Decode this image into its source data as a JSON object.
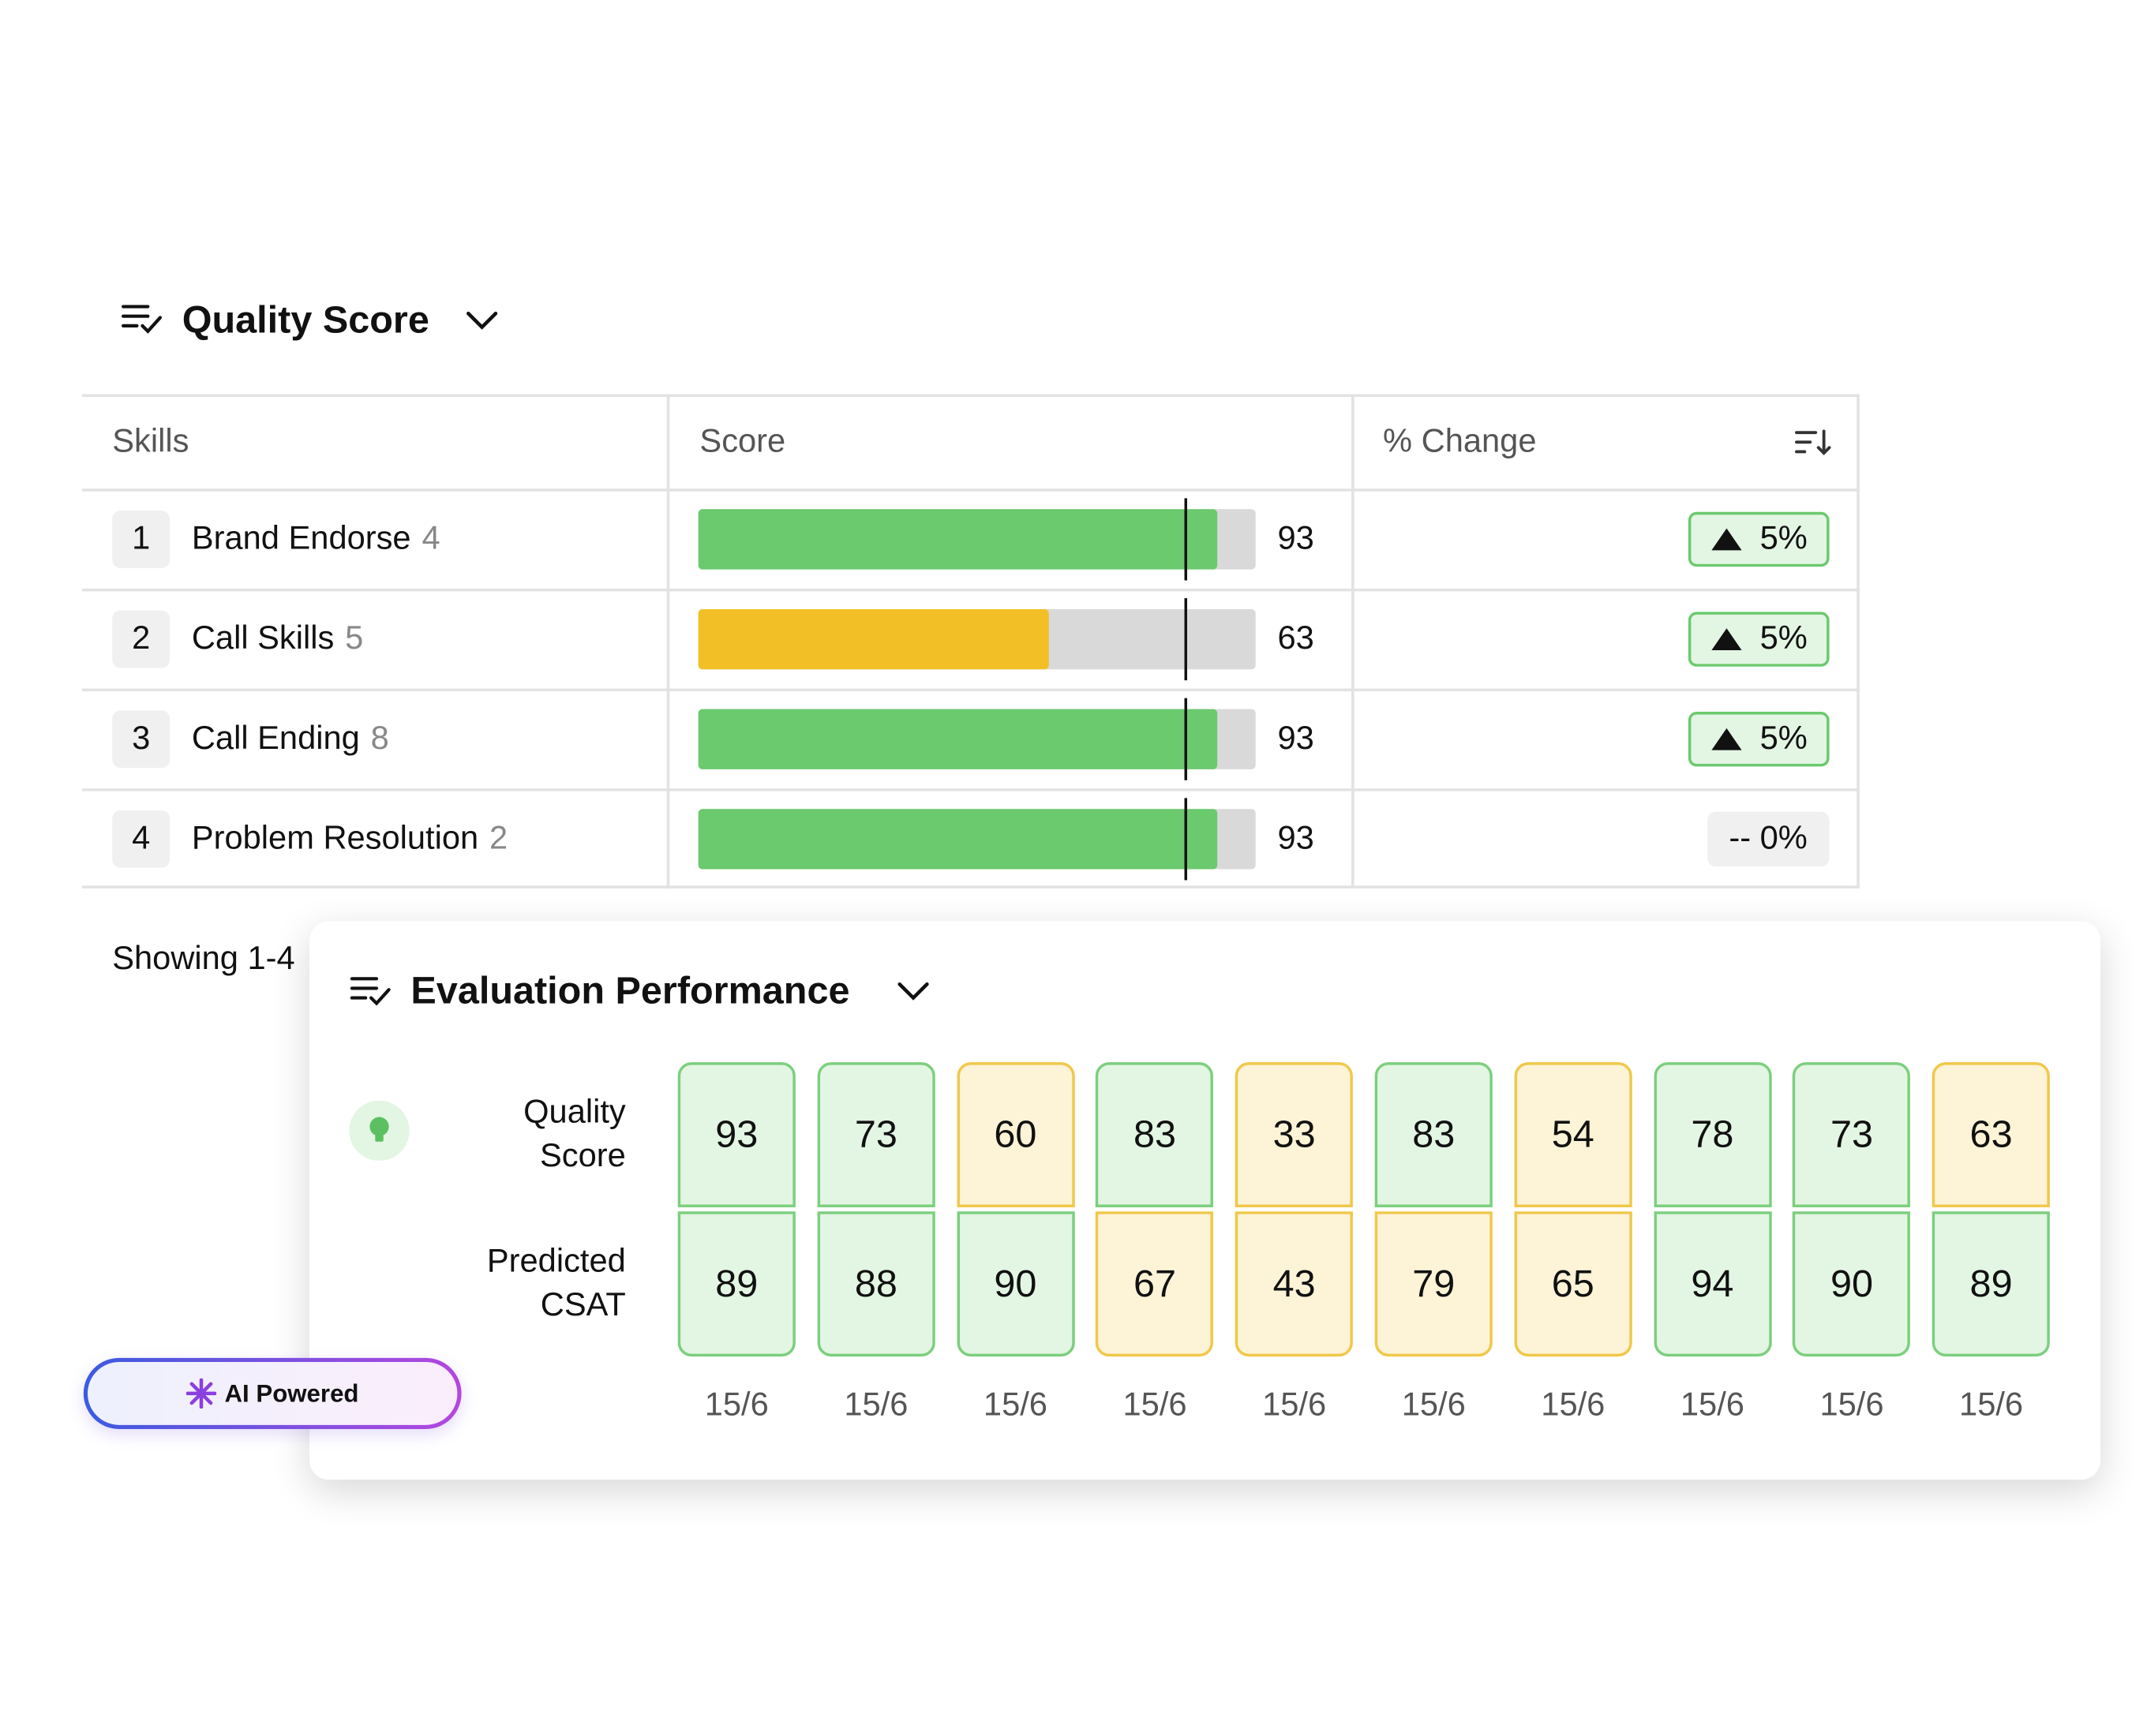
{
  "quality_panel": {
    "title": "Quality Score",
    "headers": [
      "Skills",
      "Score",
      "% Change"
    ],
    "rows": [
      {
        "rank": "1",
        "name": "Brand Endorse",
        "count": "4",
        "score": 93,
        "bar_color": "#6bc96e",
        "change": "5%",
        "trend": "up"
      },
      {
        "rank": "2",
        "name": "Call Skills",
        "count": "5",
        "score": 63,
        "bar_color": "#f2bf26",
        "change": "5%",
        "trend": "up"
      },
      {
        "rank": "3",
        "name": "Call Ending",
        "count": "8",
        "score": 93,
        "bar_color": "#6bc96e",
        "change": "5%",
        "trend": "up"
      },
      {
        "rank": "4",
        "name": "Problem Resolution",
        "count": "2",
        "score": 93,
        "bar_color": "#6bc96e",
        "change": "-- 0%",
        "trend": "flat"
      }
    ],
    "footer": "Showing 1-4"
  },
  "evaluation_panel": {
    "title": "Evaluation Performance",
    "row_labels": [
      "Quality Score",
      "Predicted CSAT"
    ],
    "green_min": [
      70,
      80
    ],
    "columns": [
      {
        "quality": 93,
        "csat": 89,
        "date": "15/6"
      },
      {
        "quality": 73,
        "csat": 88,
        "date": "15/6"
      },
      {
        "quality": 60,
        "csat": 90,
        "date": "15/6"
      },
      {
        "quality": 83,
        "csat": 67,
        "date": "15/6"
      },
      {
        "quality": 33,
        "csat": 43,
        "date": "15/6"
      },
      {
        "quality": 83,
        "csat": 79,
        "date": "15/6"
      },
      {
        "quality": 54,
        "csat": 65,
        "date": "15/6"
      },
      {
        "quality": 78,
        "csat": 94,
        "date": "15/6"
      },
      {
        "quality": 73,
        "csat": 90,
        "date": "15/6"
      },
      {
        "quality": 63,
        "csat": 89,
        "date": "15/6"
      }
    ]
  },
  "badge": {
    "label": "AI Powered"
  }
}
